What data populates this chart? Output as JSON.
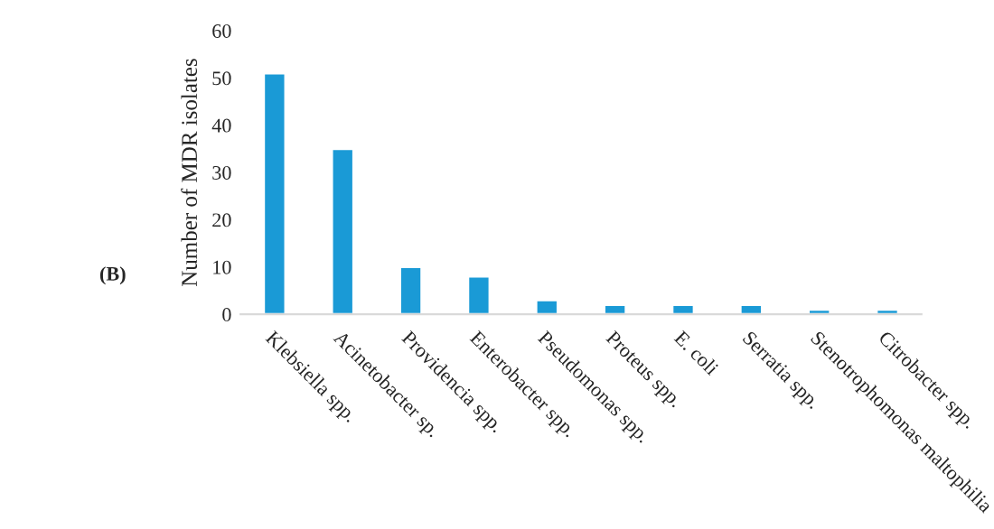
{
  "chart_data": {
    "type": "bar",
    "ylabel": "Number of MDR isolates",
    "categories": [
      "Klebsiella spp.",
      "Acinetobacter sp.",
      "Providencia spp.",
      "Enterobacter spp.",
      "Pseudomonas spp.",
      "Proteus spp.",
      "E. coli",
      "Serratia spp.",
      "Stenotrophomonas maltophilia",
      "Citrobacter spp."
    ],
    "values": [
      51,
      35,
      10,
      8,
      3,
      2,
      2,
      2,
      1,
      1
    ],
    "color": "#1a9ad6",
    "ylim": [
      0,
      60
    ],
    "yticks": [
      0,
      10,
      20,
      30,
      40,
      50,
      60
    ],
    "grid": false,
    "legend": false,
    "annotations": [
      "(B)"
    ]
  }
}
